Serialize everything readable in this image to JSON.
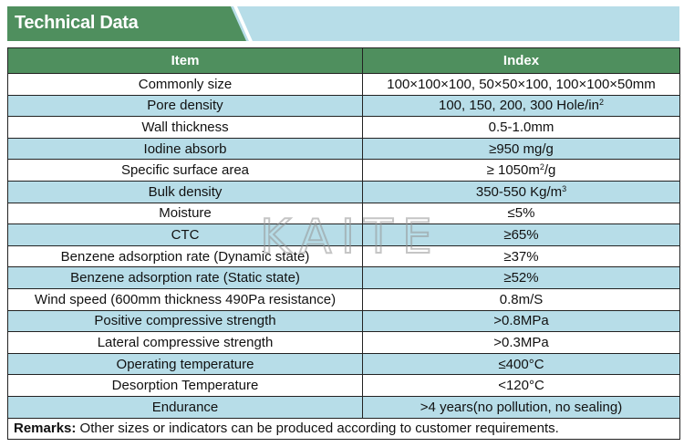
{
  "title": "Technical Data",
  "headers": {
    "item": "Item",
    "index": "Index"
  },
  "rows": [
    {
      "item": "Commonly size",
      "index": "100×100×100, 50×50×100, 100×100×50mm"
    },
    {
      "item": "Pore density",
      "index": "100, 150, 200, 300 Hole/in",
      "sup": "2"
    },
    {
      "item": "Wall thickness",
      "index": "0.5-1.0mm"
    },
    {
      "item": "Iodine absorb",
      "index": "≥950 mg/g"
    },
    {
      "item": "Specific surface area",
      "index": "≥ 1050m",
      "sup": "2",
      "suffix": "/g"
    },
    {
      "item": "Bulk density",
      "index": "350-550 Kg/m",
      "sup": "3"
    },
    {
      "item": "Moisture",
      "index": "≤5%"
    },
    {
      "item": "CTC",
      "index": "≥65%"
    },
    {
      "item": "Benzene adsorption rate (Dynamic state)",
      "index": "≥37%"
    },
    {
      "item": "Benzene adsorption rate (Static state)",
      "index": "≥52%"
    },
    {
      "item": "Wind speed (600mm thickness 490Pa resistance)",
      "index": "0.8m/S"
    },
    {
      "item": "Positive compressive strength",
      "index": ">0.8MPa"
    },
    {
      "item": "Lateral compressive strength",
      "index": ">0.3MPa"
    },
    {
      "item": "Operating temperature",
      "index": "≤400°C"
    },
    {
      "item": "Desorption Temperature",
      "index": "<120°C"
    },
    {
      "item": "Endurance",
      "index": ">4 years(no pollution, no sealing)"
    }
  ],
  "remarks": {
    "label": "Remarks:",
    "text": " Other sizes or indicators can be produced according to customer requirements."
  },
  "watermark": "KAITE",
  "colors": {
    "green": "#4f8f5e",
    "blue": "#b7dde8"
  }
}
